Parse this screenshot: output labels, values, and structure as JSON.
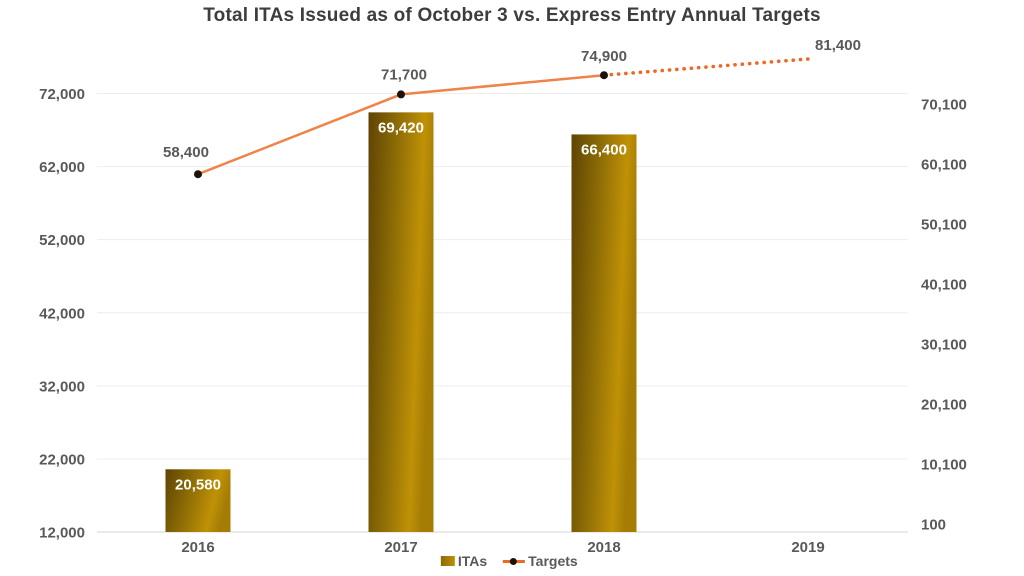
{
  "chart_data": {
    "type": "combo",
    "title": "Total ITAs Issued as of October 3 vs. Express Entry Annual Targets",
    "categories": [
      "2016",
      "2017",
      "2018",
      "2019"
    ],
    "series": [
      {
        "name": "ITAs",
        "type": "bar",
        "values": [
          20580,
          69420,
          66400,
          null
        ],
        "labels": [
          "20,580",
          "69,420",
          "66,400",
          null
        ]
      },
      {
        "name": "Targets",
        "type": "line",
        "values": [
          58400,
          71700,
          74900,
          81400
        ],
        "labels": [
          "58,400",
          "71,700",
          "74,900",
          "81,400"
        ],
        "dashed_from_index": 2
      }
    ],
    "left_axis": {
      "ticks": [
        "72,000",
        "62,000",
        "52,000",
        "42,000",
        "32,000",
        "22,000",
        "12,000"
      ],
      "tick_values": [
        72000,
        62000,
        52000,
        42000,
        32000,
        22000,
        12000
      ],
      "min": 12000,
      "max": 72000,
      "step": 10000
    },
    "right_axis": {
      "ticks": [
        "70,100",
        "60,100",
        "50,100",
        "40,100",
        "30,100",
        "20,100",
        "10,100",
        "100"
      ],
      "tick_values": [
        70100,
        60100,
        50100,
        40100,
        30100,
        20100,
        10100,
        100
      ],
      "min": 100,
      "max": 70100,
      "step": 10000
    },
    "grid": "horizontal",
    "legend_position": "bottom"
  },
  "legend": {
    "items": [
      {
        "label": "ITAs",
        "marker": "bar-swatch"
      },
      {
        "label": "Targets",
        "marker": "line-dot"
      }
    ]
  },
  "colors": {
    "background": "#ffffff",
    "bar_dark": "#5f4404",
    "bar_mid": "#8a6a05",
    "bar_light": "#c09106",
    "bar_edge": "#a57d05",
    "bar_label": "#ffffff",
    "line": "#f0834a",
    "line_dots": "#ed6825",
    "marker": "#1c1208",
    "text": "#595959",
    "title": "#3d3d3d",
    "grid": "#ededed",
    "axis_line": "#d6d6d6"
  }
}
